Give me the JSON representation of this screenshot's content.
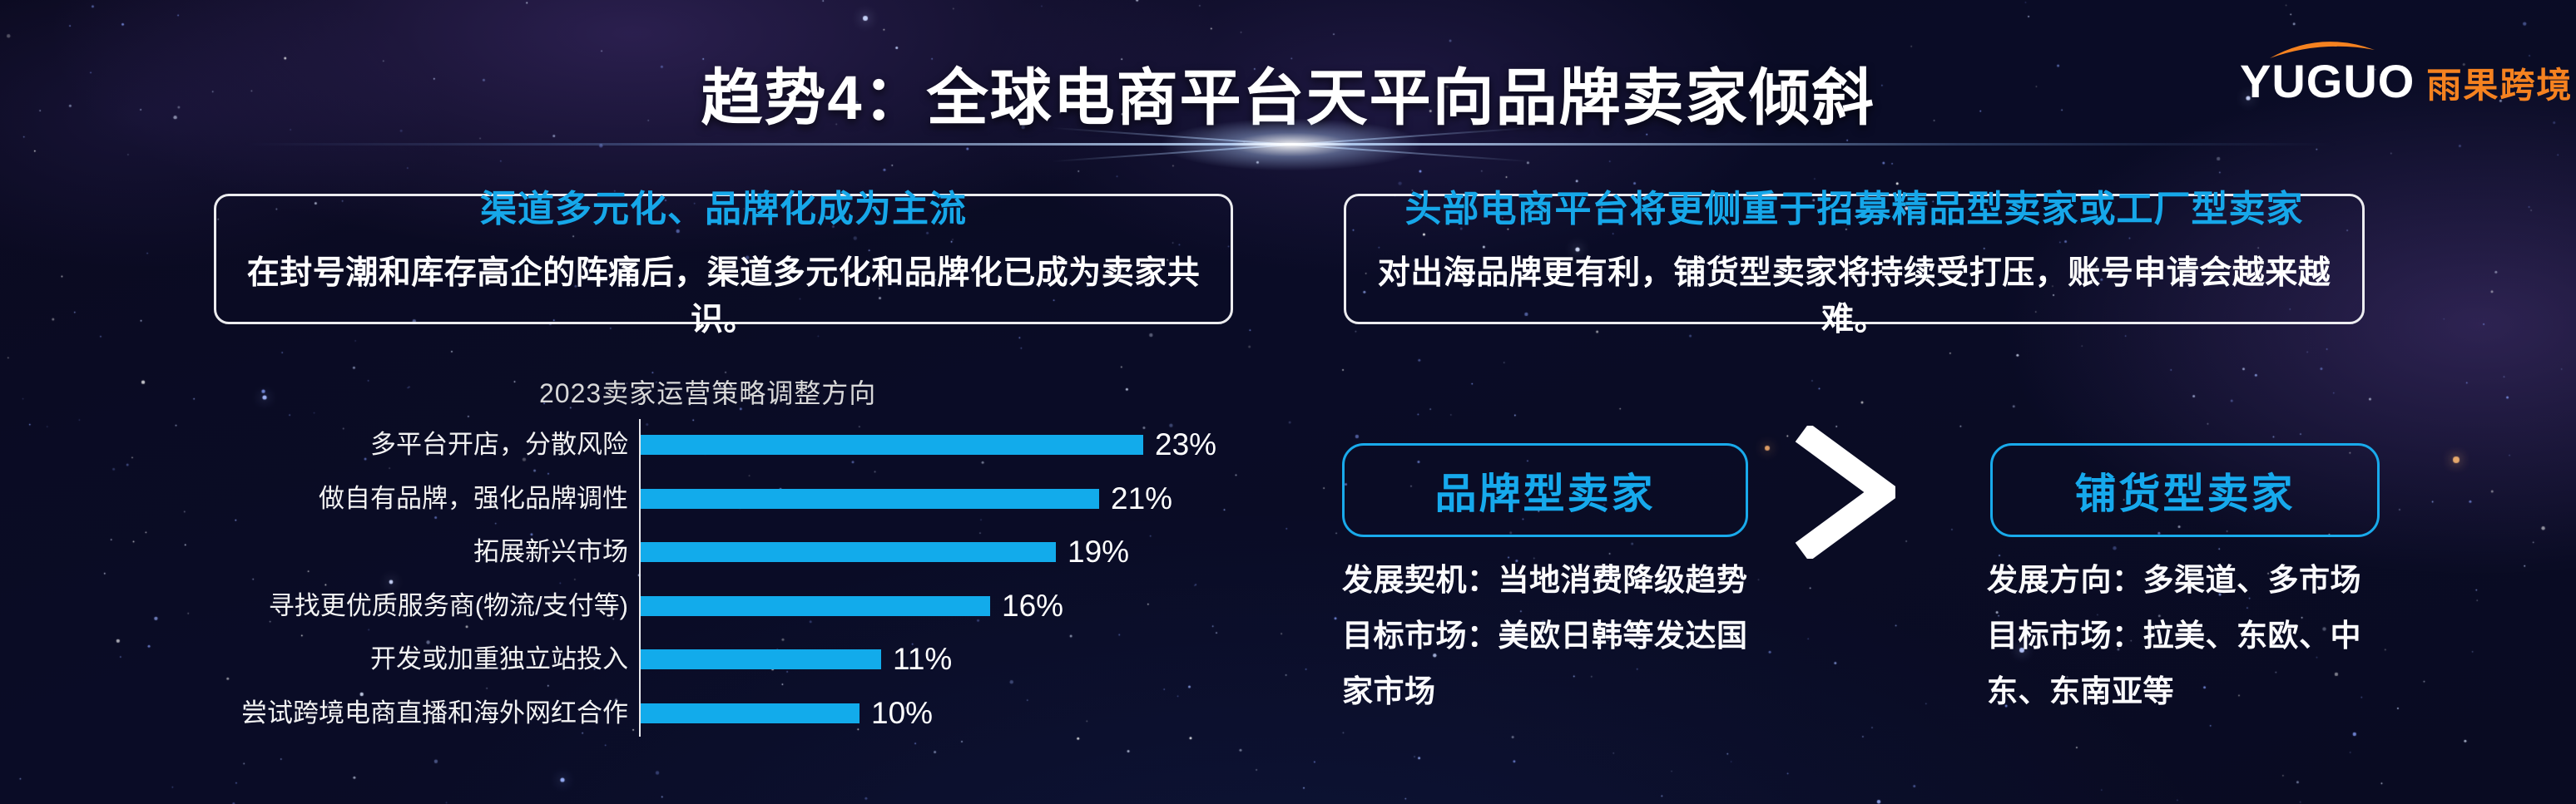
{
  "header": {
    "title": "趋势4：全球电商平台天平向品牌卖家倾斜",
    "logo": {
      "latin": "YUGUO",
      "cjk": "雨果跨境"
    }
  },
  "insights": {
    "left": {
      "heading": "渠道多元化、品牌化成为主流",
      "body": "在封号潮和库存高企的阵痛后，渠道多元化和品牌化已成为卖家共识。"
    },
    "right": {
      "heading": "头部电商平台将更侧重于招募精品型卖家或工厂型卖家",
      "body": "对出海品牌更有利，铺货型卖家将持续受打压，账号申请会越来越难。"
    }
  },
  "chart_data": {
    "type": "bar",
    "orientation": "horizontal",
    "title": "2023卖家运营策略调整方向",
    "categories": [
      "多平台开店，分散风险",
      "做自有品牌，强化品牌调性",
      "拓展新兴市场",
      "寻找更优质服务商(物流/支付等)",
      "开发或加重独立站投入",
      "尝试跨境电商直播和海外网红合作"
    ],
    "values": [
      23,
      21,
      19,
      16,
      11,
      10
    ],
    "unit": "%",
    "value_labels": [
      "23%",
      "21%",
      "19%",
      "16%",
      "11%",
      "10%"
    ],
    "xlim": [
      0,
      25
    ],
    "grid": false,
    "bar_color": "#12ABEB"
  },
  "comparison": {
    "left": {
      "label": "品牌型卖家",
      "lines": [
        "发展契机：当地消费降级趋势",
        "目标市场：美欧日韩等发达国家市场"
      ]
    },
    "symbol": ">",
    "right": {
      "label": "铺货型卖家",
      "lines": [
        "发展方向：多渠道、多市场",
        "目标市场：拉美、东欧、中东、东南亚等"
      ]
    }
  },
  "colors": {
    "accent_cyan": "#16A9EC",
    "bar_blue": "#12ABEB",
    "box_border_white": "#F6F6F8",
    "logo_orange": "#F58220",
    "background_navy": "#0A0B24"
  }
}
